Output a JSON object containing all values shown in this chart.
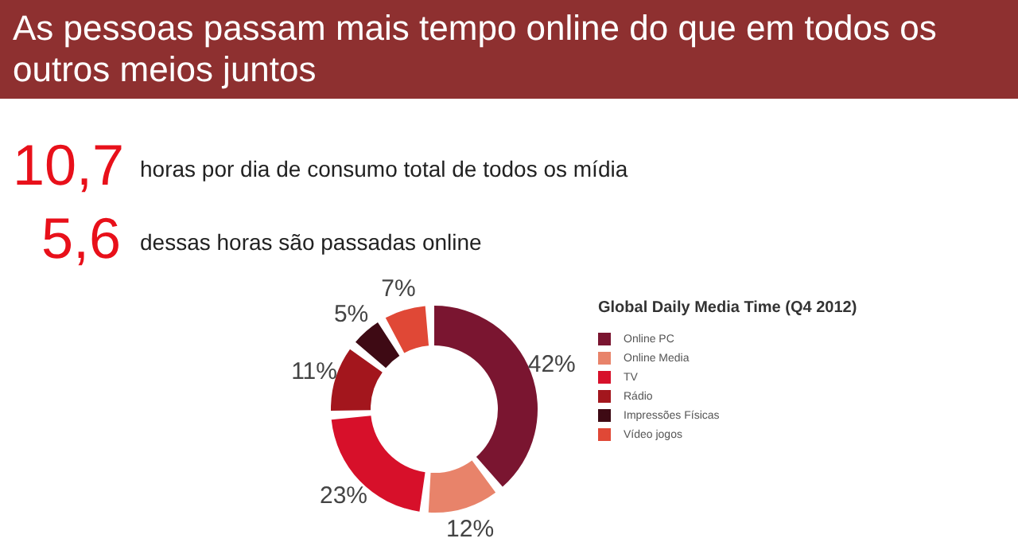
{
  "chart_data": {
    "type": "donut",
    "title": "As pessoas passam mais tempo online do que em todos os outros meios juntos",
    "annotations": [
      "10,7",
      "horas por dia de consumo total de todos os mídia",
      "5,6",
      "dessas horas são passadas online"
    ],
    "legend_title": "Global Daily Media Time (Q4 2012)",
    "categories": [
      "Online PC",
      "Online Media",
      "TV",
      "Rádio",
      "Impressões Físicas",
      "Vídeo jogos"
    ],
    "values": [
      42,
      12,
      23,
      11,
      5,
      7
    ],
    "value_labels": [
      "42%",
      "12%",
      "23%",
      "11%",
      "5%",
      "7%"
    ],
    "colors": [
      "#7a1530",
      "#e8836a",
      "#d7102a",
      "#a3161d",
      "#3e0a14",
      "#e04836"
    ],
    "legend": "right"
  }
}
